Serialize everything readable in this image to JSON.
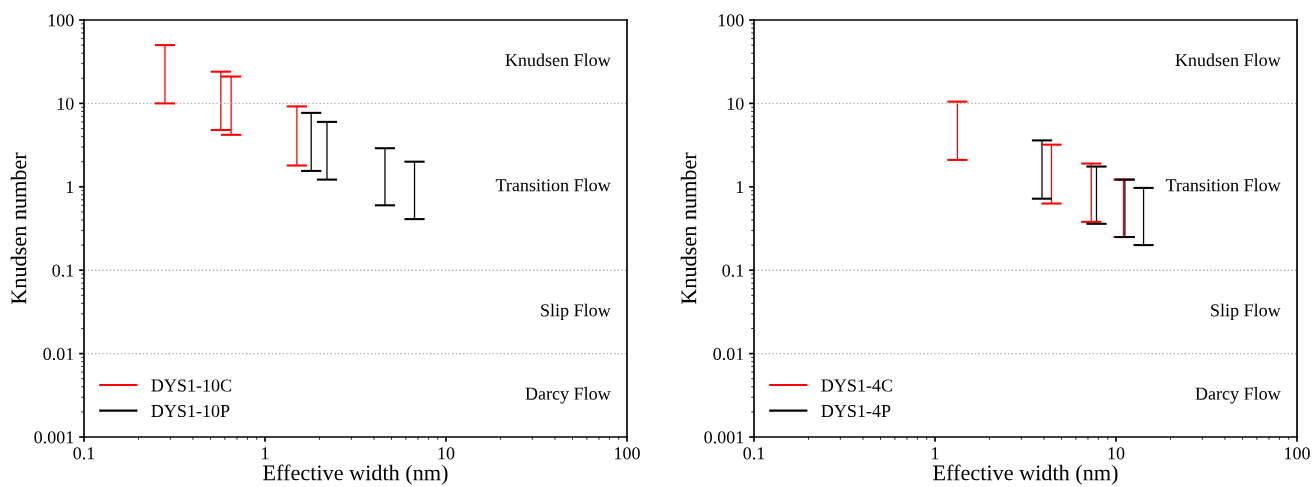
{
  "chart_data": [
    {
      "type": "bar",
      "xlabel": "Effective width (nm)",
      "ylabel": "Knudsen number",
      "log": "xy",
      "grid": false,
      "legend": "bottom left",
      "xlim": [
        0.1,
        100
      ],
      "xticks": [
        0.1,
        1,
        10,
        100
      ],
      "ylim": [
        0.001,
        100
      ],
      "yticks": [
        0.001,
        0.01,
        0.1,
        1,
        10,
        100
      ],
      "series": [
        {
          "name": "DYS1-10C",
          "color": "#ff0000",
          "x": [
            0.28,
            0.57,
            0.65,
            1.5
          ],
          "base": [
            10,
            4.8,
            4.2,
            1.8
          ],
          "values": [
            40,
            19.2,
            16.8,
            7.4
          ]
        },
        {
          "name": "DYS1-10P",
          "color": "#000000",
          "x": [
            1.8,
            2.2,
            4.6,
            6.7
          ],
          "base": [
            1.55,
            1.22,
            0.6,
            0.41
          ],
          "values": [
            6.15,
            4.78,
            2.3,
            1.59
          ]
        }
      ],
      "ref_lines": [
        {
          "axis": "y",
          "value": 10,
          "color": "#b0b0b0",
          "line_style": "dotted"
        },
        {
          "axis": "y",
          "value": 0.1,
          "color": "#b0b0b0",
          "line_style": "dotted"
        },
        {
          "axis": "y",
          "value": 0.01,
          "color": "#b0b0b0",
          "line_style": "dotted"
        }
      ],
      "annotations": [
        "Knudsen Flow",
        "Transition Flow",
        "Slip Flow",
        "Darcy Flow"
      ]
    },
    {
      "type": "bar",
      "xlabel": "Effective width (nm)",
      "ylabel": "Knudsen number",
      "log": "xy",
      "grid": false,
      "legend": "bottom left",
      "xlim": [
        0.1,
        100
      ],
      "xticks": [
        0.1,
        1,
        10,
        100
      ],
      "ylim": [
        0.001,
        100
      ],
      "yticks": [
        0.001,
        0.01,
        0.1,
        1,
        10,
        100
      ],
      "series": [
        {
          "name": "DYS1-4C",
          "color": "#ff0000",
          "x": [
            1.33,
            4.4,
            7.3,
            11
          ],
          "base": [
            2.1,
            0.63,
            0.38,
            0.25
          ],
          "values": [
            8.4,
            2.57,
            1.52,
            0.97
          ]
        },
        {
          "name": "DYS1-4P",
          "color": "#000000",
          "x": [
            3.9,
            7.8,
            11.2,
            14.2
          ],
          "base": [
            0.72,
            0.36,
            0.25,
            0.2
          ],
          "values": [
            2.88,
            1.39,
            0.97,
            0.77
          ]
        }
      ],
      "ref_lines": [
        {
          "axis": "y",
          "value": 10,
          "color": "#b0b0b0",
          "line_style": "dotted"
        },
        {
          "axis": "y",
          "value": 0.1,
          "color": "#b0b0b0",
          "line_style": "dotted"
        },
        {
          "axis": "y",
          "value": 0.01,
          "color": "#b0b0b0",
          "line_style": "dotted"
        }
      ],
      "annotations": [
        "Knudsen Flow",
        "Transition Flow",
        "Slip Flow",
        "Darcy Flow"
      ]
    }
  ]
}
